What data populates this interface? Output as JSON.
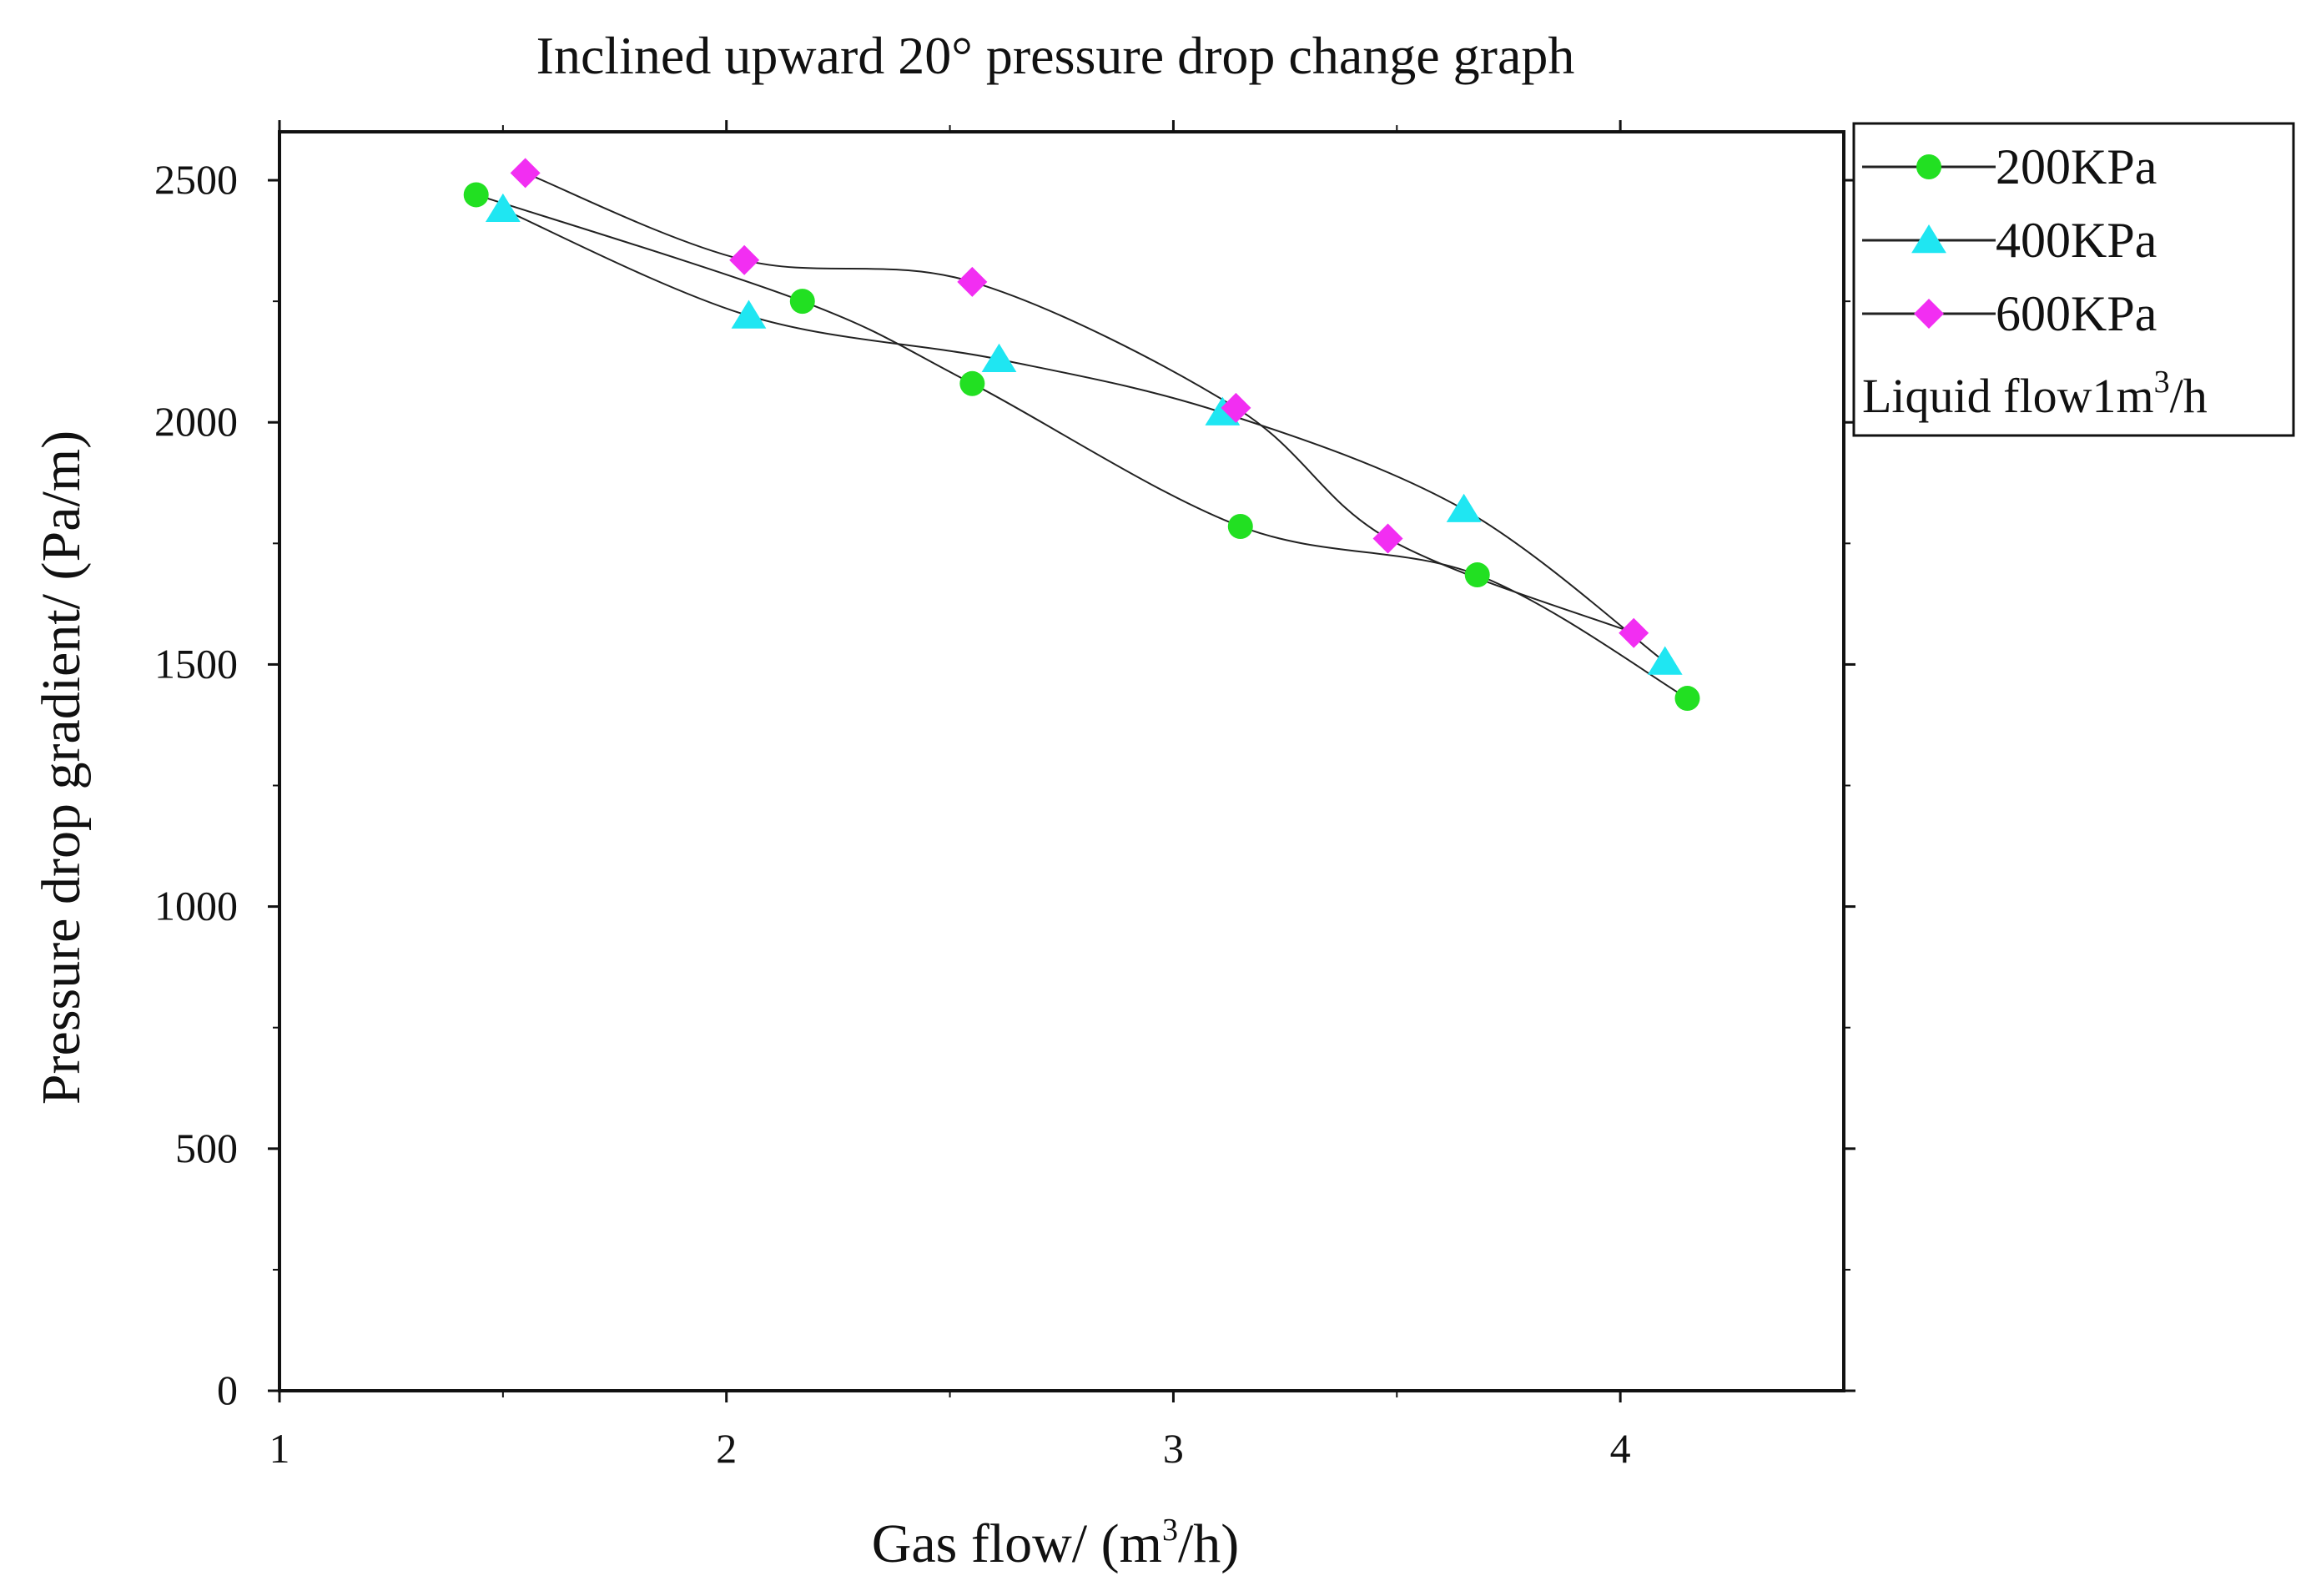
{
  "chart_data": {
    "type": "line",
    "title": "Inclined upward 20° pressure drop change graph",
    "xlabel": {
      "prefix": "Gas flow/ (m",
      "sup": "3",
      "suffix": "/h)"
    },
    "ylabel": "Pressure drop gradient/ (Pa/m)",
    "xlim": [
      1,
      4.5
    ],
    "ylim": [
      0,
      2600
    ],
    "x_ticks": [
      1,
      2,
      3,
      4
    ],
    "x_tick_labels": [
      "1",
      "2",
      "3",
      "4"
    ],
    "y_ticks": [
      0,
      500,
      1000,
      1500,
      2000,
      2500
    ],
    "y_tick_labels": [
      "0",
      "500",
      "1000",
      "1500",
      "2000",
      "2500"
    ],
    "grid": false,
    "legend_position": "outside-top-right",
    "legend_note": {
      "prefix": "Liquid flow1m",
      "sup": "3",
      "suffix": "/h"
    },
    "series": [
      {
        "name": "200KPa",
        "marker": "circle",
        "color": "#22e022",
        "x": [
          1.44,
          2.17,
          2.55,
          3.15,
          3.68,
          4.15
        ],
        "y": [
          2470,
          2250,
          2080,
          1785,
          1685,
          1430
        ]
      },
      {
        "name": "400KPa",
        "marker": "triangle",
        "color": "#1fe6f2",
        "x": [
          1.5,
          2.05,
          2.61,
          3.11,
          3.65,
          4.1
        ],
        "y": [
          2440,
          2220,
          2130,
          2020,
          1820,
          1505
        ]
      },
      {
        "name": "600KPa",
        "marker": "diamond",
        "color": "#f22ef2",
        "x": [
          1.55,
          2.04,
          2.55,
          3.14,
          3.48,
          4.03
        ],
        "y": [
          2515,
          2335,
          2290,
          2030,
          1760,
          1565
        ]
      }
    ],
    "line_color": "#222222"
  }
}
